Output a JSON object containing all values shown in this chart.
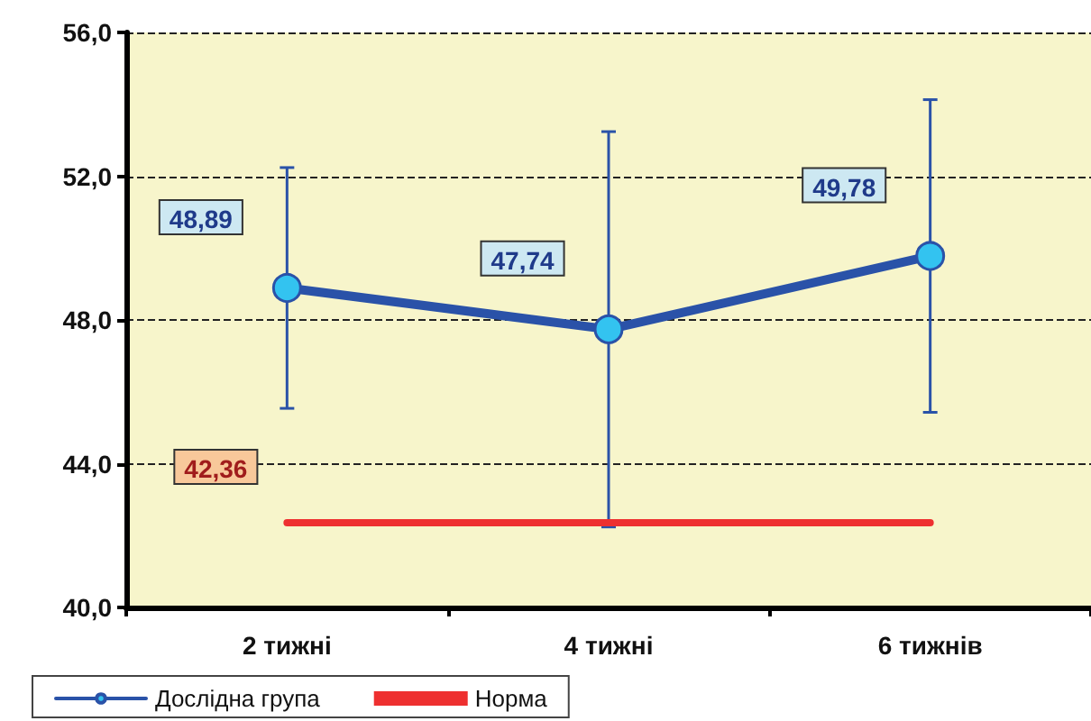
{
  "chart_data": {
    "type": "line",
    "categories": [
      "2 тижні",
      "4 тижні",
      "6 тижнів"
    ],
    "series": [
      {
        "name": "Дослідна група",
        "color": "#2a52a8",
        "marker": "circle",
        "values": [
          48.89,
          47.74,
          49.78
        ],
        "errors": [
          3.35,
          5.5,
          4.35
        ],
        "value_labels": [
          "48,89",
          "47,74",
          "49,78"
        ]
      },
      {
        "name": "Норма",
        "color": "#ee3030",
        "marker": "none",
        "values": [
          42.36,
          42.36,
          42.36
        ],
        "value_labels": [
          "42,36",
          null,
          null
        ]
      }
    ],
    "ylim": [
      40,
      56
    ],
    "yticks": [
      {
        "value": 40,
        "label": "40,0"
      },
      {
        "value": 44,
        "label": "44,0"
      },
      {
        "value": 48,
        "label": "48,0"
      },
      {
        "value": 52,
        "label": "52,0"
      },
      {
        "value": 56,
        "label": "56,0"
      }
    ],
    "grid": "y",
    "legend": "bottom left",
    "line_style": "solid"
  }
}
